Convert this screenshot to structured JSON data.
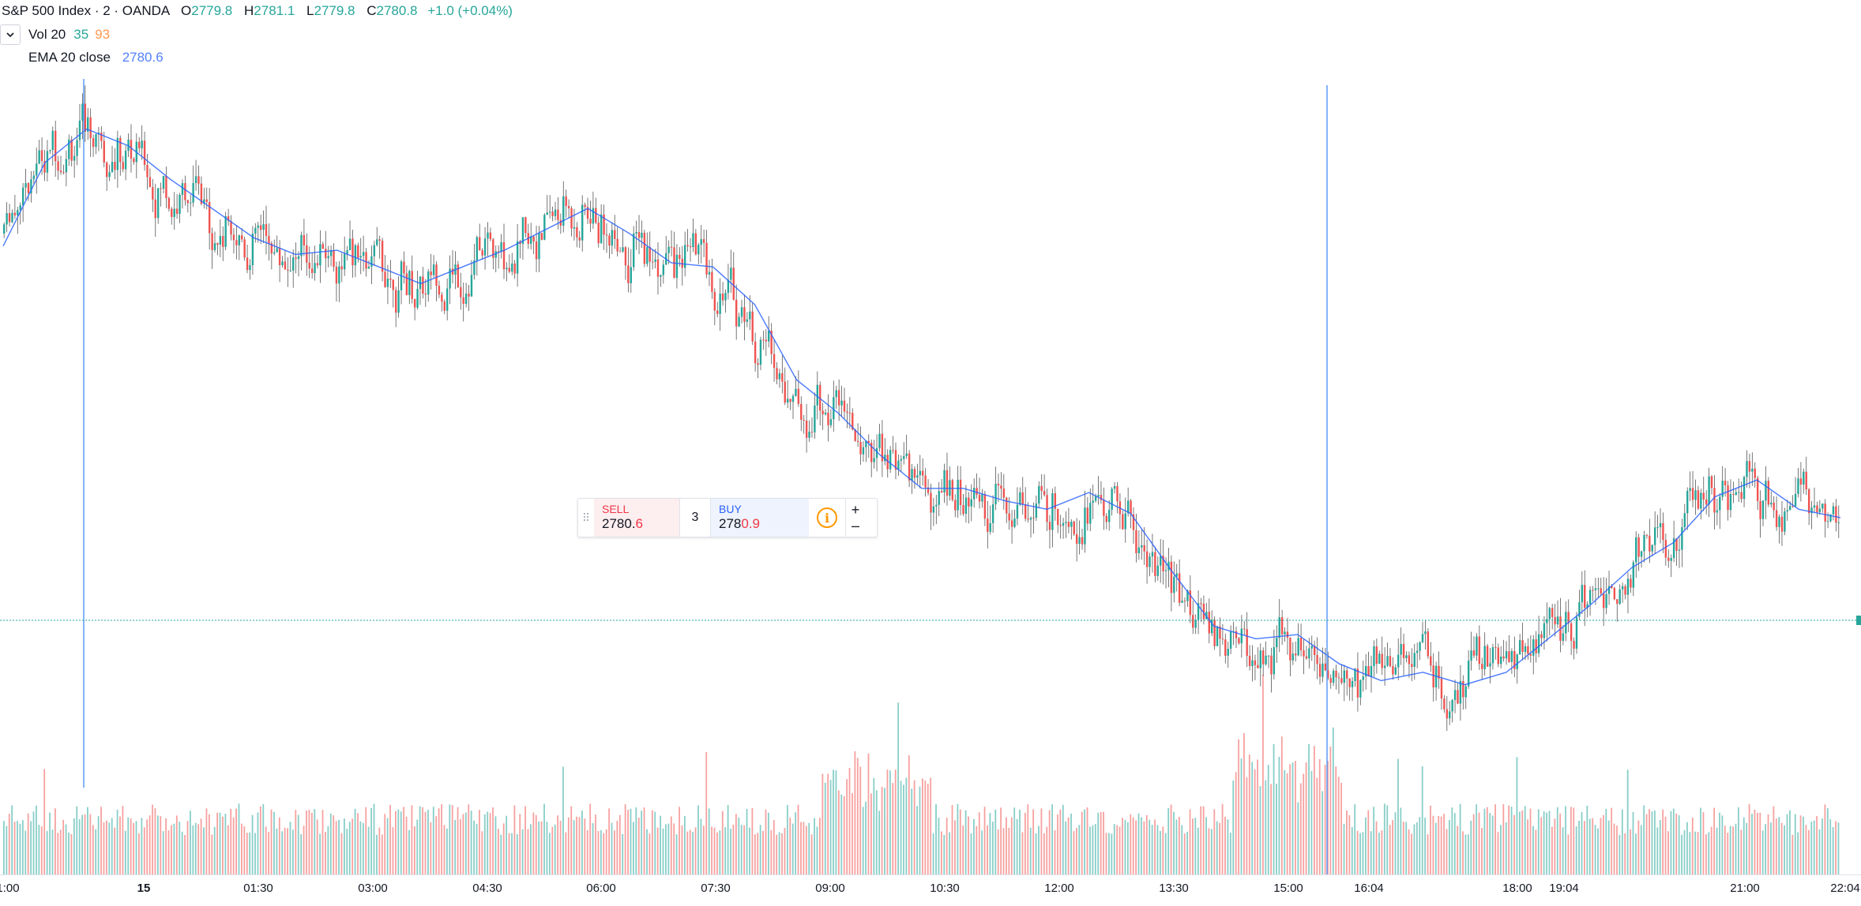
{
  "header": {
    "symbol": "S&P 500 Index · 2 · OANDA",
    "open_label": "O",
    "open": "2779.8",
    "high_label": "H",
    "high": "2781.1",
    "low_label": "L",
    "low": "2779.8",
    "close_label": "C",
    "close": "2780.8",
    "change": "+1.0 (+0.04%)"
  },
  "indicators": {
    "volume": {
      "label": "Vol 20",
      "value1": "35",
      "value2": "93"
    },
    "ema": {
      "label": "EMA 20 close",
      "value": "2780.6"
    }
  },
  "trade_widget": {
    "sell_label": "SELL",
    "sell_price_main": "2780.",
    "sell_price_hl": "6",
    "quantity": "3",
    "buy_label": "BUY",
    "buy_price_main": "278",
    "buy_price_hl": "0.9",
    "plus": "+",
    "minus": "–",
    "info": "i"
  },
  "time_axis": [
    {
      "label": "1:00",
      "bold": false
    },
    {
      "label": "15",
      "bold": true
    },
    {
      "label": "01:30",
      "bold": false
    },
    {
      "label": "03:00",
      "bold": false
    },
    {
      "label": "04:30",
      "bold": false
    },
    {
      "label": "06:00",
      "bold": false
    },
    {
      "label": "07:30",
      "bold": false
    },
    {
      "label": "09:00",
      "bold": false
    },
    {
      "label": "10:30",
      "bold": false
    },
    {
      "label": "12:00",
      "bold": false
    },
    {
      "label": "13:30",
      "bold": false
    },
    {
      "label": "15:00",
      "bold": false
    },
    {
      "label": "16:04",
      "bold": false
    },
    {
      "label": "18:00",
      "bold": false
    },
    {
      "label": "19:04",
      "bold": false
    },
    {
      "label": "21:00",
      "bold": false
    },
    {
      "label": "22:04",
      "bold": false
    }
  ],
  "colors": {
    "up": "#26a69a",
    "down": "#ef5350",
    "ema": "#2962ff",
    "price_line": "#26a69a",
    "wick": "#555555"
  },
  "chart_data": {
    "type": "line",
    "series": [
      {
        "name": "EMA 20 close",
        "x": [
          "00:15",
          "00:45",
          "01:15",
          "01:45",
          "02:15",
          "02:45",
          "03:15",
          "03:45",
          "04:15",
          "04:45",
          "05:15",
          "05:45",
          "06:15",
          "06:45",
          "07:15",
          "07:45",
          "08:15",
          "08:45",
          "09:15",
          "09:45",
          "10:15",
          "10:45",
          "11:15",
          "11:45",
          "12:15",
          "12:45",
          "13:15",
          "13:45",
          "14:15",
          "14:45",
          "15:15",
          "15:45",
          "16:15",
          "16:45",
          "17:15",
          "17:45",
          "18:15",
          "18:45",
          "19:15",
          "19:45",
          "20:15",
          "20:45",
          "21:15",
          "21:45",
          "22:15"
        ],
        "values": [
          2787.0,
          2789.0,
          2789.8,
          2789.4,
          2788.6,
          2787.9,
          2787.2,
          2786.8,
          2786.9,
          2786.5,
          2786.1,
          2786.5,
          2786.9,
          2787.4,
          2787.9,
          2787.3,
          2786.6,
          2786.5,
          2785.6,
          2783.8,
          2783.0,
          2782.0,
          2781.2,
          2781.2,
          2780.9,
          2780.7,
          2781.1,
          2780.6,
          2779.2,
          2777.9,
          2777.6,
          2777.7,
          2777.0,
          2776.6,
          2776.8,
          2776.5,
          2776.8,
          2777.6,
          2778.4,
          2779.3,
          2779.9,
          2781.0,
          2781.4,
          2780.7,
          2780.5
        ]
      }
    ],
    "volume_last": "35",
    "volume_ma": "93",
    "last_price": "2780.8"
  }
}
